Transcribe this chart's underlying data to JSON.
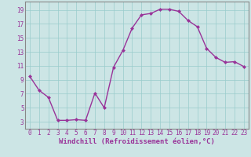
{
  "x": [
    0,
    1,
    2,
    3,
    4,
    5,
    6,
    7,
    8,
    9,
    10,
    11,
    12,
    13,
    14,
    15,
    16,
    17,
    18,
    19,
    20,
    21,
    22,
    23
  ],
  "y": [
    9.5,
    7.5,
    6.5,
    3.2,
    3.2,
    3.3,
    3.2,
    7.1,
    5.0,
    10.8,
    13.2,
    16.4,
    18.3,
    18.5,
    19.1,
    19.1,
    18.8,
    17.5,
    16.6,
    13.5,
    12.2,
    11.5,
    11.6,
    10.9
  ],
  "line_color": "#993399",
  "marker": "D",
  "markersize": 2.0,
  "linewidth": 1.0,
  "bg_color": "#cce5e5",
  "grid_color": "#99cccc",
  "xlabel": "Windchill (Refroidissement éolien,°C)",
  "xlabel_fontsize": 6.5,
  "ylabel_ticks": [
    3,
    5,
    7,
    9,
    11,
    13,
    15,
    17,
    19
  ],
  "xlim": [
    -0.5,
    23.5
  ],
  "ylim": [
    2.0,
    20.2
  ],
  "xtick_labels": [
    "0",
    "1",
    "2",
    "3",
    "4",
    "5",
    "6",
    "7",
    "8",
    "9",
    "10",
    "11",
    "12",
    "13",
    "14",
    "15",
    "16",
    "17",
    "18",
    "19",
    "20",
    "21",
    "22",
    "23"
  ],
  "tick_fontsize": 5.5,
  "spine_color": "#888888"
}
